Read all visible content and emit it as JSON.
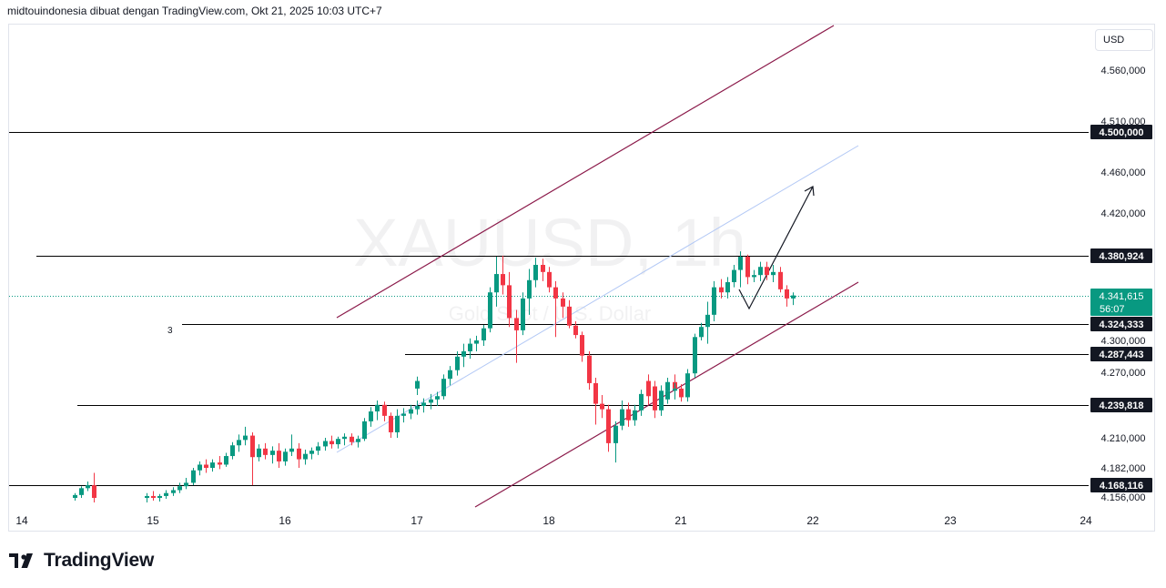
{
  "header": {
    "title": "midtouindonesia dibuat dengan TradingView.com, Okt 21, 2025 10:03 UTC+7"
  },
  "currency_button": {
    "label": "USD"
  },
  "brand": {
    "name": "TradingView",
    "logo_icon": "tradingview-logo-icon"
  },
  "chart_data": {
    "type": "candlestick",
    "watermark": {
      "symbol": "XAUUSD, 1h",
      "subtitle": "Gold Spot / U.S. Dollar"
    },
    "ylim": [
      4150,
      4600
    ],
    "yticks": [
      {
        "value": 4560,
        "label": "4.560,000"
      },
      {
        "value": 4510,
        "label": "4.510,000"
      },
      {
        "value": 4460,
        "label": "4.460,000"
      },
      {
        "value": 4420,
        "label": "4.420,000"
      },
      {
        "value": 4300,
        "label": "4.300,000"
      },
      {
        "value": 4270,
        "label": "4.270,000"
      },
      {
        "value": 4210,
        "label": "4.210,000"
      },
      {
        "value": 4182,
        "label": "4.182,000"
      },
      {
        "value": 4156,
        "label": "4.156,000"
      }
    ],
    "xticks": [
      "14",
      "15",
      "16",
      "17",
      "18",
      "21",
      "22",
      "23",
      "24"
    ],
    "levels": [
      {
        "value": 4500.0,
        "label": "4.500,000"
      },
      {
        "value": 4380.924,
        "label": "4.380,924"
      },
      {
        "value": 4324.333,
        "label": "4.324,333"
      },
      {
        "value": 4287.443,
        "label": "4.287,443"
      },
      {
        "value": 4239.818,
        "label": "4.239,818"
      },
      {
        "value": 4168.116,
        "label": "4.168,116"
      }
    ],
    "current_price": {
      "value": 4341.615,
      "label": "4.341,615",
      "countdown": "56:07"
    },
    "annotation_text": "3",
    "colors": {
      "up": "#089981",
      "down": "#f23645",
      "channel": "#8b1a4a",
      "midline": "#b2c8f5",
      "current": "#089981",
      "level": "#000000",
      "grid_text": "#131722"
    },
    "candles": [
      [
        14.4,
        4155,
        4160,
        4152,
        4158
      ],
      [
        14.45,
        4158,
        4167,
        4155,
        4165
      ],
      [
        14.5,
        4165,
        4171,
        4162,
        4168
      ],
      [
        14.55,
        4168,
        4178,
        4150,
        4155
      ],
      [
        14.95,
        4155,
        4160,
        4150,
        4157
      ],
      [
        15.0,
        4157,
        4162,
        4152,
        4155
      ],
      [
        15.05,
        4155,
        4159,
        4151,
        4157
      ],
      [
        15.1,
        4157,
        4163,
        4154,
        4160
      ],
      [
        15.15,
        4160,
        4166,
        4157,
        4163
      ],
      [
        15.2,
        4163,
        4170,
        4160,
        4167
      ],
      [
        15.25,
        4167,
        4174,
        4164,
        4170
      ],
      [
        15.3,
        4170,
        4182,
        4168,
        4180
      ],
      [
        15.35,
        4180,
        4188,
        4176,
        4185
      ],
      [
        15.4,
        4185,
        4190,
        4178,
        4182
      ],
      [
        15.45,
        4182,
        4190,
        4179,
        4187
      ],
      [
        15.5,
        4187,
        4193,
        4181,
        4185
      ],
      [
        15.55,
        4185,
        4196,
        4183,
        4193
      ],
      [
        15.6,
        4193,
        4206,
        4190,
        4203
      ],
      [
        15.65,
        4203,
        4213,
        4197,
        4208
      ],
      [
        15.7,
        4208,
        4220,
        4203,
        4212
      ],
      [
        15.75,
        4212,
        4215,
        4168,
        4192
      ],
      [
        15.8,
        4192,
        4204,
        4188,
        4200
      ],
      [
        15.85,
        4200,
        4205,
        4190,
        4194
      ],
      [
        15.9,
        4194,
        4202,
        4186,
        4198
      ],
      [
        15.95,
        4198,
        4205,
        4182,
        4188
      ],
      [
        16.0,
        4188,
        4200,
        4184,
        4197
      ],
      [
        16.05,
        4197,
        4213,
        4193,
        4200
      ],
      [
        16.1,
        4200,
        4205,
        4182,
        4190
      ],
      [
        16.15,
        4190,
        4199,
        4185,
        4195
      ],
      [
        16.2,
        4195,
        4201,
        4190,
        4198
      ],
      [
        16.25,
        4198,
        4206,
        4194,
        4202
      ],
      [
        16.3,
        4202,
        4210,
        4198,
        4207
      ],
      [
        16.35,
        4207,
        4212,
        4200,
        4204
      ],
      [
        16.4,
        4204,
        4211,
        4200,
        4209
      ],
      [
        16.45,
        4209,
        4214,
        4203,
        4211
      ],
      [
        16.5,
        4211,
        4214,
        4203,
        4206
      ],
      [
        16.55,
        4206,
        4212,
        4201,
        4209
      ],
      [
        16.6,
        4209,
        4228,
        4207,
        4225
      ],
      [
        16.65,
        4225,
        4238,
        4220,
        4234
      ],
      [
        16.7,
        4234,
        4244,
        4226,
        4240
      ],
      [
        16.75,
        4240,
        4243,
        4225,
        4230
      ],
      [
        16.8,
        4230,
        4233,
        4210,
        4215
      ],
      [
        16.85,
        4215,
        4236,
        4210,
        4230
      ],
      [
        16.9,
        4230,
        4237,
        4224,
        4232
      ],
      [
        16.95,
        4232,
        4240,
        4227,
        4236
      ],
      [
        17.0,
        4236,
        4244,
        4231,
        4239
      ],
      [
        17.05,
        4239,
        4246,
        4233,
        4242
      ],
      [
        17.1,
        4242,
        4250,
        4236,
        4245
      ],
      [
        17.15,
        4245,
        4252,
        4239,
        4248
      ],
      [
        17.2,
        4248,
        4268,
        4245,
        4264
      ],
      [
        17.25,
        4264,
        4276,
        4258,
        4272
      ],
      [
        17.3,
        4272,
        4290,
        4267,
        4285
      ],
      [
        17.35,
        4285,
        4297,
        4275,
        4290
      ],
      [
        17.4,
        4290,
        4303,
        4283,
        4297
      ],
      [
        17.45,
        4297,
        4307,
        4290,
        4300
      ],
      [
        17.5,
        4300,
        4323,
        4295,
        4318
      ],
      [
        17.55,
        4318,
        4350,
        4312,
        4345
      ],
      [
        17.6,
        4345,
        4380,
        4335,
        4363
      ],
      [
        17.65,
        4363,
        4381,
        4343,
        4352
      ],
      [
        17.7,
        4352,
        4365,
        4320,
        4328
      ],
      [
        17.75,
        4328,
        4333,
        4279,
        4315
      ],
      [
        17.8,
        4315,
        4345,
        4308,
        4340
      ],
      [
        17.85,
        4340,
        4368,
        4330,
        4357
      ],
      [
        17.9,
        4357,
        4379,
        4350,
        4372
      ],
      [
        17.95,
        4372,
        4378,
        4356,
        4365
      ],
      [
        18.0,
        4365,
        4370,
        4345,
        4350
      ],
      [
        18.05,
        4350,
        4356,
        4305,
        4340
      ],
      [
        18.1,
        4340,
        4345,
        4328,
        4335
      ],
      [
        18.15,
        4335,
        4339,
        4318,
        4322
      ],
      [
        18.2,
        4322,
        4326,
        4303,
        4308
      ],
      [
        18.25,
        4308,
        4313,
        4280,
        4286
      ],
      [
        18.3,
        4286,
        4290,
        4254,
        4260
      ],
      [
        18.35,
        4260,
        4265,
        4222,
        4241
      ],
      [
        18.4,
        4241,
        4249,
        4228,
        4236
      ],
      [
        18.45,
        4236,
        4240,
        4197,
        4205
      ],
      [
        18.5,
        4205,
        4225,
        4187,
        4221
      ],
      [
        18.55,
        4221,
        4244,
        4217,
        4236
      ],
      [
        18.6,
        4236,
        4242,
        4220,
        4226
      ],
      [
        18.65,
        4226,
        4240,
        4221,
        4235
      ],
      [
        18.7,
        4235,
        4254,
        4230,
        4250
      ],
      [
        18.75,
        4250,
        4262,
        4243,
        4257
      ],
      [
        18.8,
        4257,
        4262,
        4235,
        4240
      ],
      [
        18.85,
        4240,
        4258,
        4236,
        4253
      ],
      [
        18.9,
        4253,
        4265,
        4248,
        4261
      ],
      [
        18.95,
        4261,
        4268,
        4250,
        4255
      ],
      [
        19.0,
        4255,
        4266,
        4249,
        4262
      ],
      [
        20.75,
        4262,
        4268,
        4240,
        4248
      ],
      [
        20.8,
        4248,
        4253,
        4228,
        4235
      ],
      [
        20.85,
        4235,
        4248,
        4230,
        4245
      ],
      [
        20.9,
        4245,
        4257,
        4241,
        4253
      ],
      [
        20.95,
        4253,
        4260,
        4245,
        4255
      ],
      [
        21.0,
        4255,
        4259,
        4243,
        4247
      ],
      [
        21.05,
        4247,
        4273,
        4243,
        4269
      ],
      [
        21.1,
        4269,
        4310,
        4265,
        4305
      ],
      [
        21.15,
        4305,
        4325,
        4300,
        4320
      ],
      [
        21.2,
        4320,
        4338,
        4297,
        4330
      ],
      [
        21.25,
        4330,
        4356,
        4326,
        4350
      ],
      [
        21.3,
        4350,
        4358,
        4340,
        4345
      ],
      [
        21.35,
        4345,
        4360,
        4340,
        4355
      ],
      [
        21.4,
        4355,
        4372,
        4350,
        4367
      ],
      [
        21.45,
        4367,
        4385,
        4350,
        4380
      ],
      [
        21.5,
        4380,
        4382,
        4353,
        4360
      ],
      [
        21.55,
        4360,
        4367,
        4355,
        4362
      ],
      [
        21.6,
        4362,
        4375,
        4356,
        4370
      ],
      [
        21.65,
        4370,
        4375,
        4357,
        4362
      ],
      [
        21.7,
        4362,
        4372,
        4355,
        4365
      ],
      [
        21.75,
        4365,
        4370,
        4345,
        4348
      ],
      [
        21.8,
        4348,
        4352,
        4335,
        4340
      ],
      [
        21.85,
        4340,
        4345,
        4336,
        4342
      ]
    ]
  }
}
